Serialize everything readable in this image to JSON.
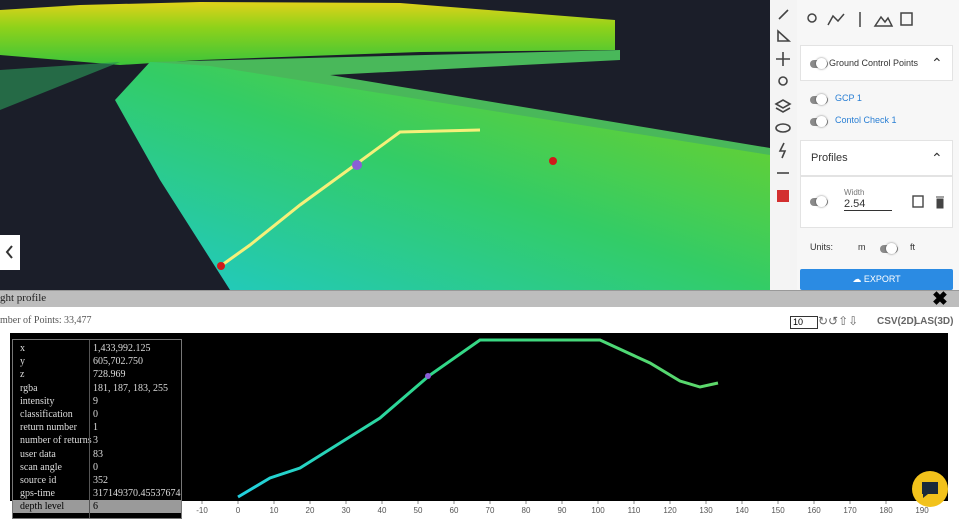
{
  "panel": {
    "gcp_section": {
      "title": "Ground Control Points",
      "items": [
        "GCP 1",
        "Contol Check 1"
      ]
    },
    "profiles_section": {
      "title": "Profiles",
      "width_label": "Width",
      "width_value": "2.54"
    },
    "units": {
      "label": "Units:",
      "options": [
        "m",
        "ft"
      ]
    },
    "export_button": "EXPORT"
  },
  "profile_window": {
    "title": "ght profile",
    "points_label": "mber of Points:",
    "points_value": "33,477",
    "step_value": "10",
    "buttons": [
      "CSV(2D)",
      "LAS(3D)"
    ],
    "info_table": {
      "rows": [
        [
          "x",
          "1,433,992.125"
        ],
        [
          "y",
          "605,702.750"
        ],
        [
          "z",
          "728.969"
        ],
        [
          "rgba",
          "181, 187, 183, 255"
        ],
        [
          "intensity",
          "9"
        ],
        [
          "classification",
          "0"
        ],
        [
          "return number",
          "1"
        ],
        [
          "number of returns",
          "3"
        ],
        [
          "user data",
          "83"
        ],
        [
          "scan angle",
          "0"
        ],
        [
          "source id",
          "352"
        ],
        [
          "gps-time",
          "317149370.45537674"
        ],
        [
          "depth level",
          "6"
        ]
      ]
    },
    "xticks": [
      -10,
      0,
      10,
      20,
      30,
      40,
      50,
      60,
      70,
      80,
      90,
      100,
      110,
      120,
      130,
      140,
      150,
      160,
      170,
      180,
      190
    ]
  }
}
